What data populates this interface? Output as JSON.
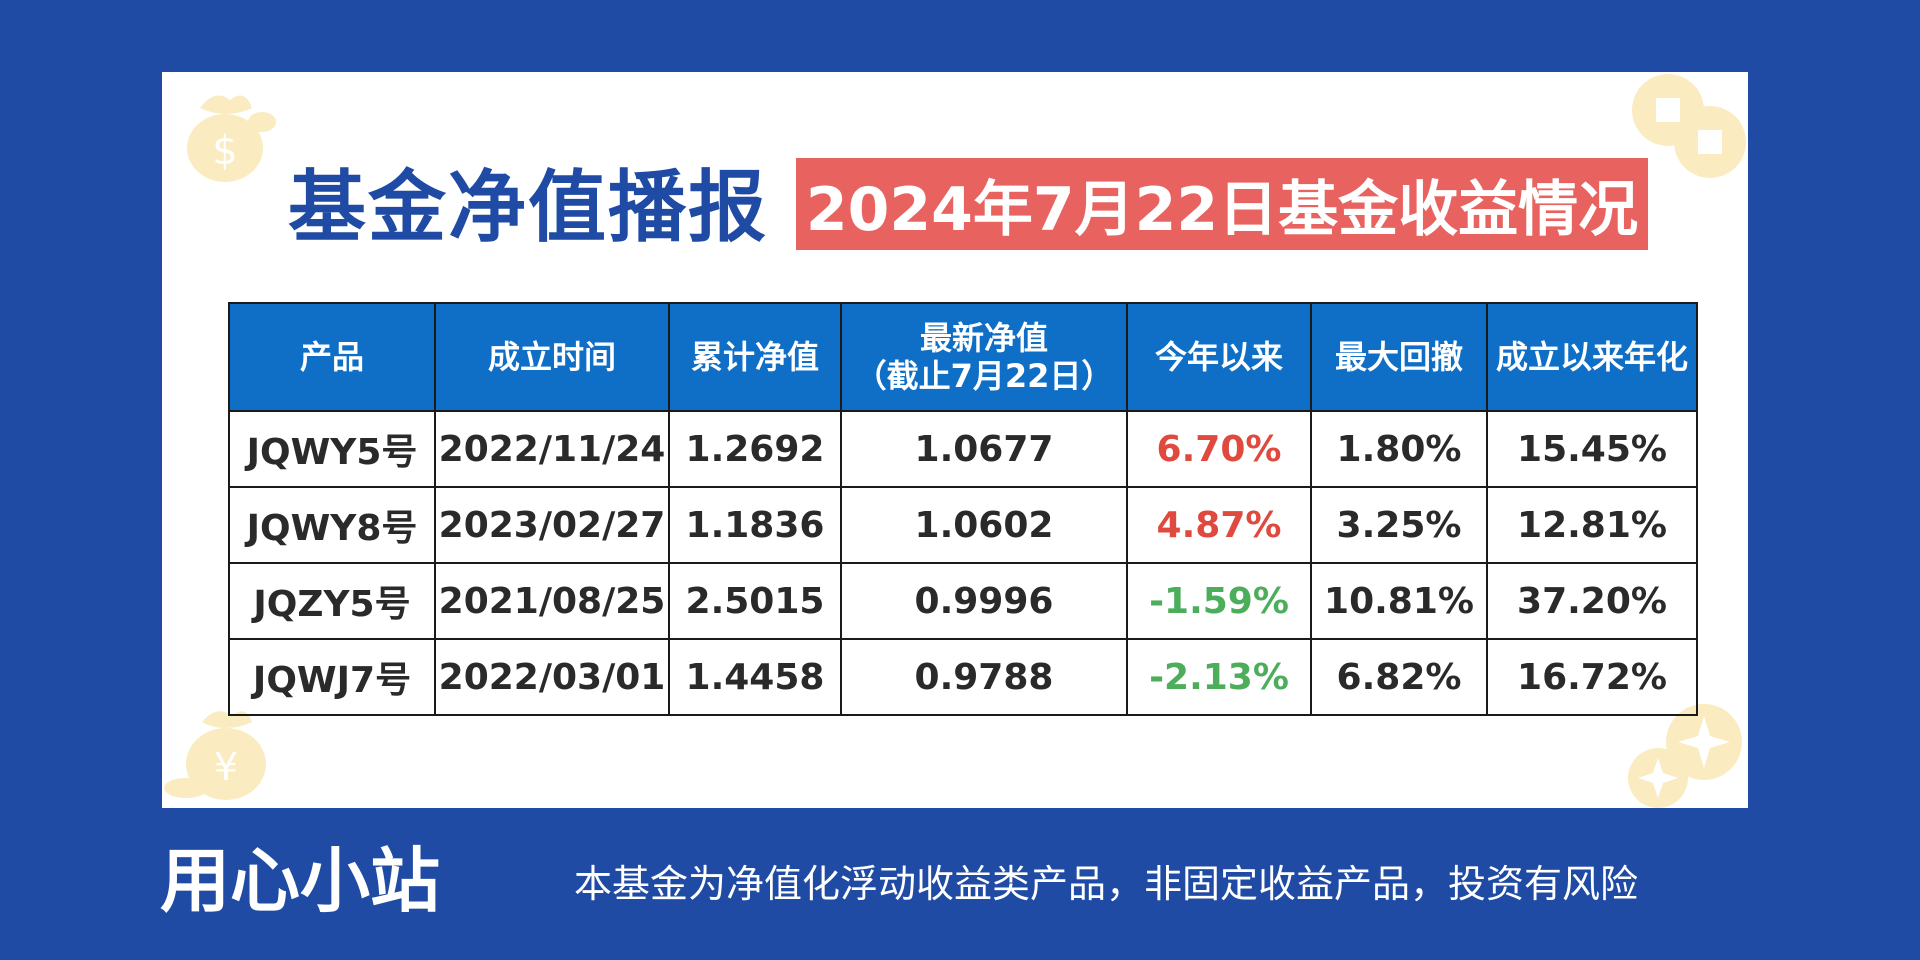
{
  "colors": {
    "background": "#1f4ba5",
    "card": "#ffffff",
    "title": "#1f4ba5",
    "banner": "#e8635f",
    "header": "#0f6fc6",
    "positive": "#e04a3e",
    "negative": "#4cae5a"
  },
  "title": "基金净值播报",
  "date_banner": "2024年7月22日基金收益情况",
  "table": {
    "headers": [
      {
        "lines": [
          "产品"
        ]
      },
      {
        "lines": [
          "成立时间"
        ]
      },
      {
        "lines": [
          "累计净值"
        ]
      },
      {
        "lines": [
          "最新净值",
          "（截止7月22日）"
        ]
      },
      {
        "lines": [
          "今年以来"
        ]
      },
      {
        "lines": [
          "最大回撤"
        ]
      },
      {
        "lines": [
          "成立以来年化"
        ]
      }
    ],
    "rows": [
      {
        "product": "JQWY5号",
        "established": "2022/11/24",
        "cumulative_nav": "1.2692",
        "latest_nav": "1.0677",
        "ytd": "6.70%",
        "ytd_sign": "pos",
        "max_drawdown": "1.80%",
        "annualized": "15.45%"
      },
      {
        "product": "JQWY8号",
        "established": "2023/02/27",
        "cumulative_nav": "1.1836",
        "latest_nav": "1.0602",
        "ytd": "4.87%",
        "ytd_sign": "pos",
        "max_drawdown": "3.25%",
        "annualized": "12.81%"
      },
      {
        "product": "JQZY5号",
        "established": "2021/08/25",
        "cumulative_nav": "2.5015",
        "latest_nav": "0.9996",
        "ytd": "-1.59%",
        "ytd_sign": "neg",
        "max_drawdown": "10.81%",
        "annualized": "37.20%"
      },
      {
        "product": "JQWJ7号",
        "established": "2022/03/01",
        "cumulative_nav": "1.4458",
        "latest_nav": "0.9788",
        "ytd": "-2.13%",
        "ytd_sign": "neg",
        "max_drawdown": "6.82%",
        "annualized": "16.72%"
      }
    ]
  },
  "footer": {
    "brand": "用心小站",
    "disclaimer": "本基金为净值化浮动收益类产品，非固定收益产品，投资有风险"
  },
  "decorations": [
    "money-bag-icon",
    "coin-icon"
  ]
}
